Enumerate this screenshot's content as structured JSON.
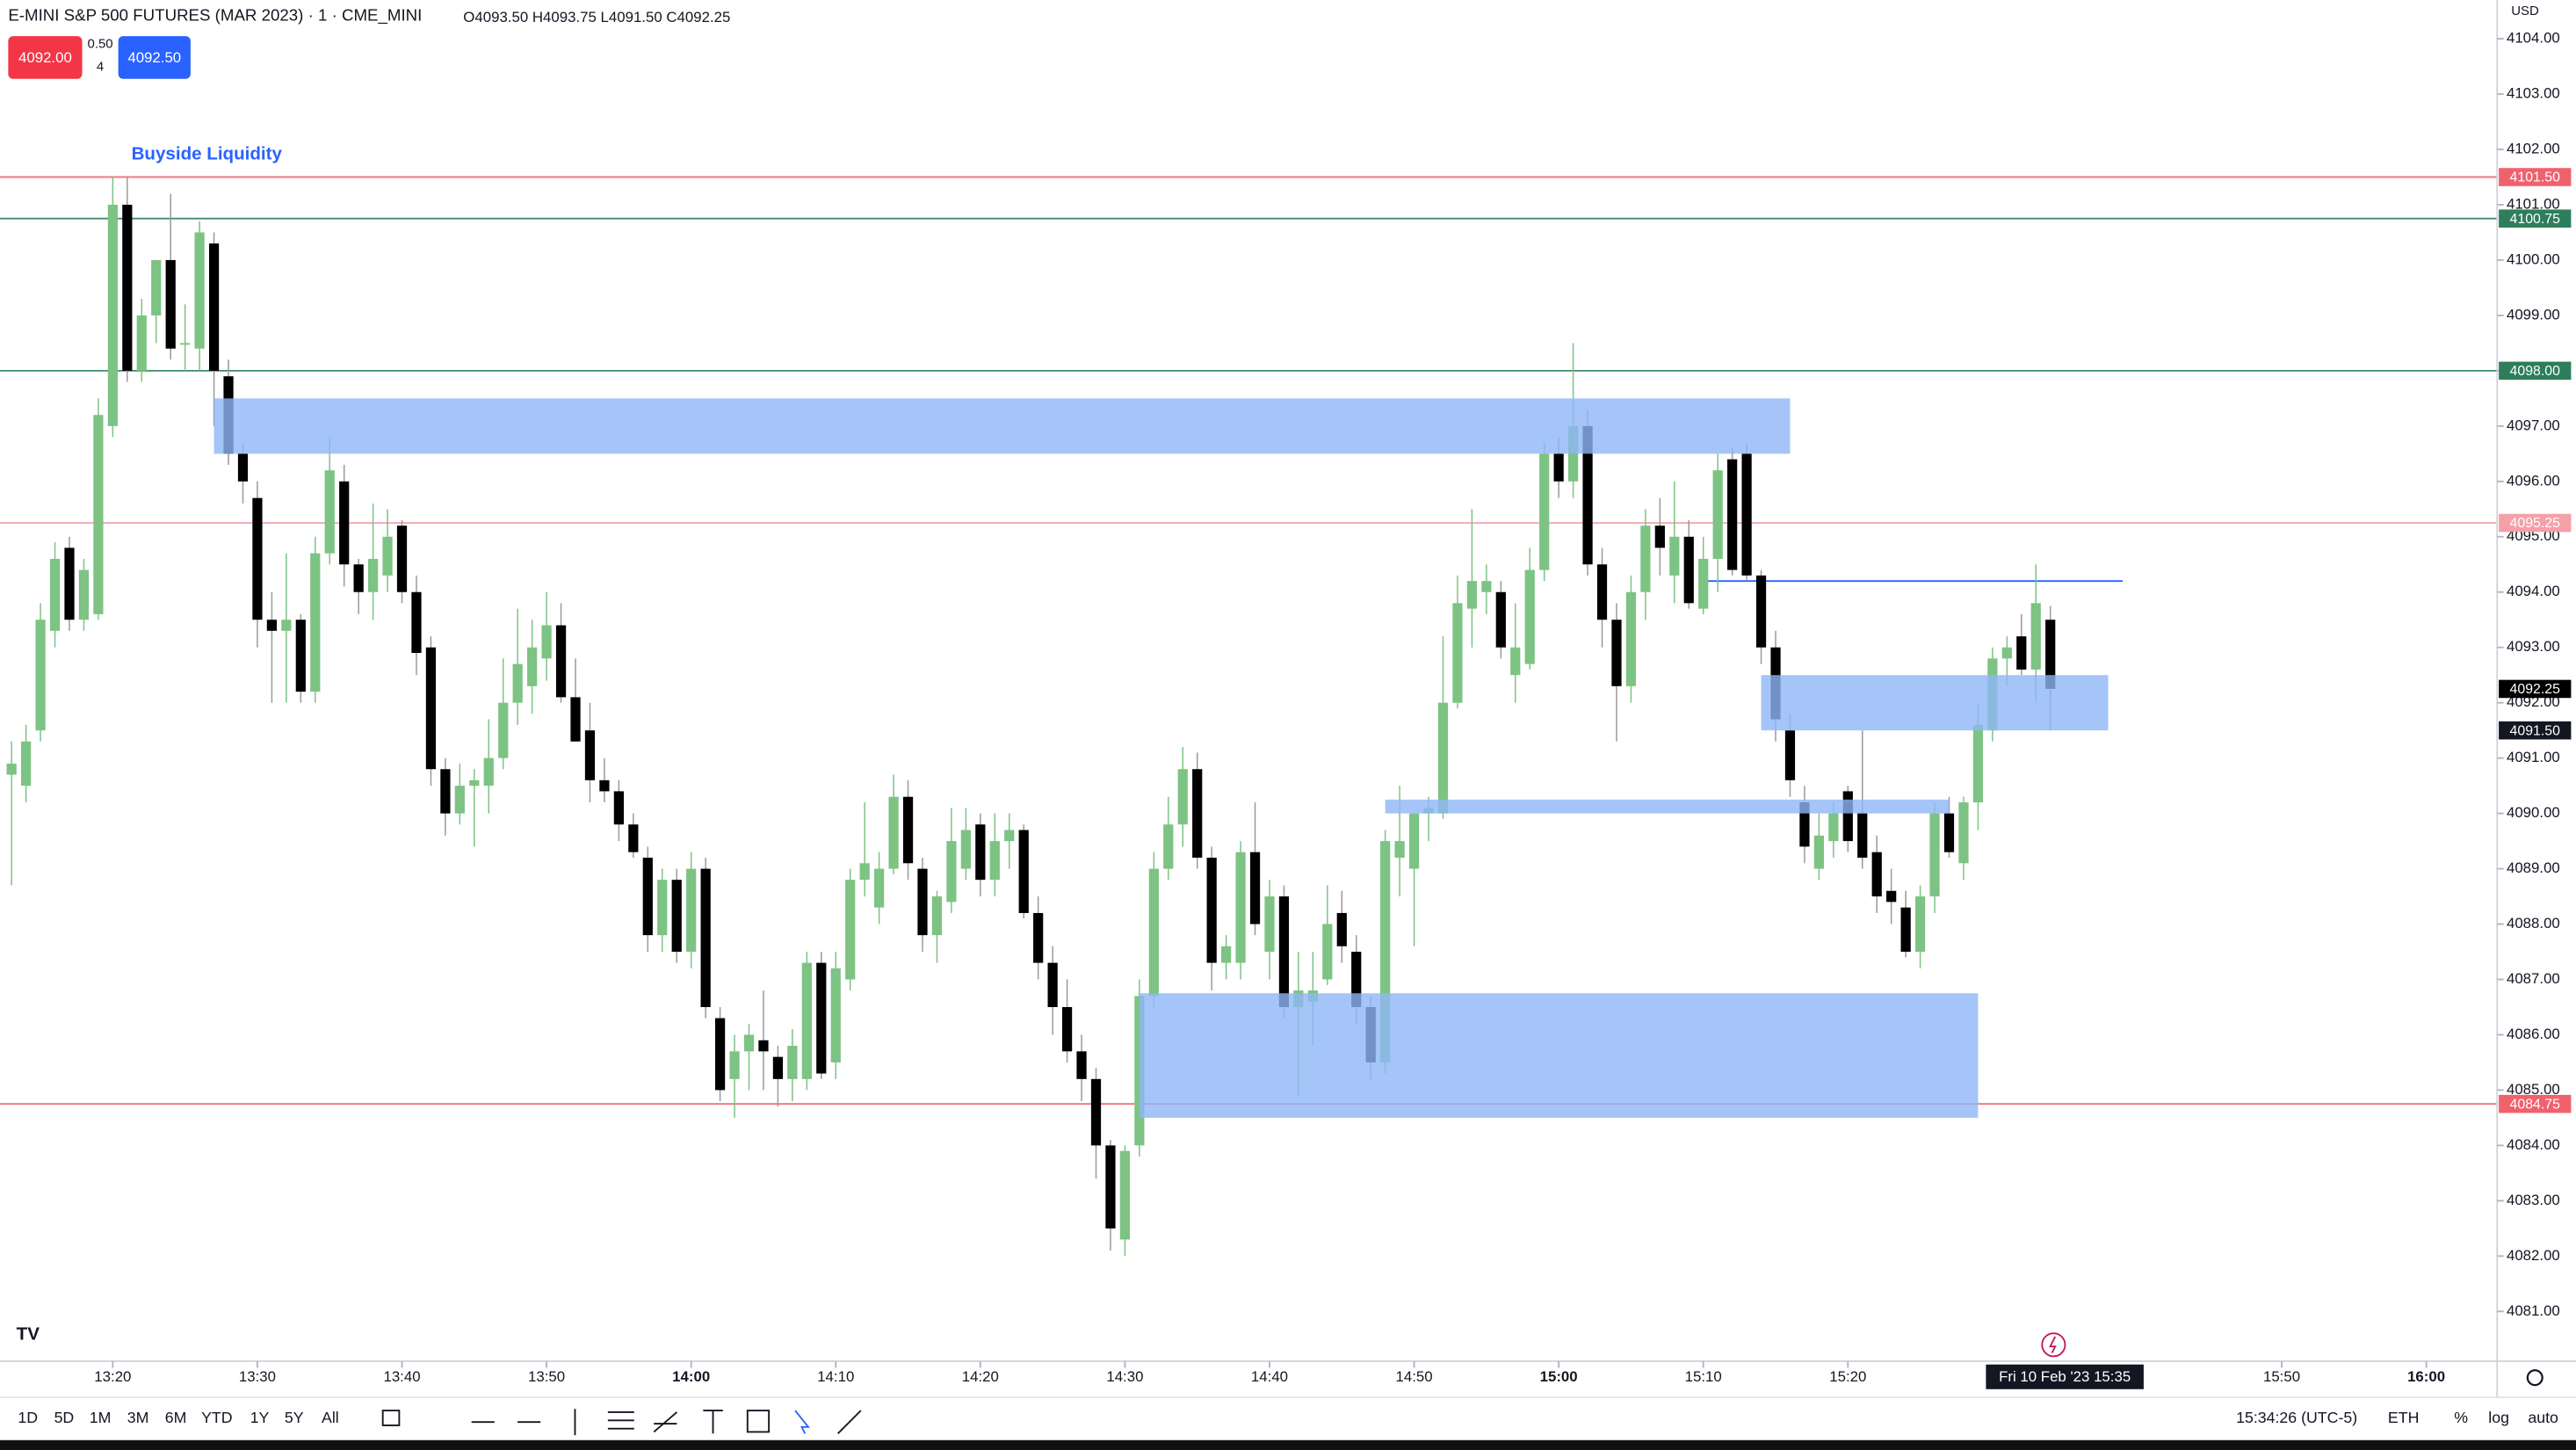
{
  "header": {
    "title": "E-MINI S&P 500 FUTURES (MAR 2023) · 1 · CME_MINI",
    "ohlc": "O4093.50 H4093.75 L4091.50 C4092.25",
    "bid": "4092.00",
    "spread": "0.50",
    "spread_count": "4",
    "ask": "4092.50",
    "currency": "USD"
  },
  "toolbar": {
    "timeframes": [
      "1D",
      "5D",
      "1M",
      "3M",
      "6M",
      "YTD",
      "1Y",
      "5Y",
      "All"
    ],
    "clock": "15:34:26 (UTC-5)",
    "session": "ETH",
    "scale_options": [
      "%",
      "log",
      "auto"
    ]
  },
  "chart_data": {
    "type": "candlestick",
    "annotation": "Buyside Liquidity",
    "up_color": "#7dc383",
    "down_color": "#000000",
    "grid": false,
    "xlim": [
      792.2,
      964.9
    ],
    "ylim": [
      4080.1,
      4104.7
    ],
    "xticks": [
      {
        "value": 800,
        "label": "13:20"
      },
      {
        "value": 810,
        "label": "13:30"
      },
      {
        "value": 820,
        "label": "13:40"
      },
      {
        "value": 830,
        "label": "13:50"
      },
      {
        "value": 840,
        "label": "14:00"
      },
      {
        "value": 850,
        "label": "14:10"
      },
      {
        "value": 860,
        "label": "14:20"
      },
      {
        "value": 870,
        "label": "14:30"
      },
      {
        "value": 880,
        "label": "14:40"
      },
      {
        "value": 890,
        "label": "14:50"
      },
      {
        "value": 900,
        "label": "15:00"
      },
      {
        "value": 910,
        "label": "15:10"
      },
      {
        "value": 920,
        "label": "15:20"
      },
      {
        "value": 950,
        "label": "15:50"
      },
      {
        "value": 960,
        "label": "16:00"
      }
    ],
    "yticks": [
      {
        "value": 4081,
        "label": "4081.00"
      },
      {
        "value": 4082,
        "label": "4082.00"
      },
      {
        "value": 4083,
        "label": "4083.00"
      },
      {
        "value": 4084,
        "label": "4084.00"
      },
      {
        "value": 4085,
        "label": "4085.00"
      },
      {
        "value": 4086,
        "label": "4086.00"
      },
      {
        "value": 4087,
        "label": "4087.00"
      },
      {
        "value": 4088,
        "label": "4088.00"
      },
      {
        "value": 4089,
        "label": "4089.00"
      },
      {
        "value": 4090,
        "label": "4090.00"
      },
      {
        "value": 4091,
        "label": "4091.00"
      },
      {
        "value": 4092,
        "label": "4092.00"
      },
      {
        "value": 4093,
        "label": "4093.00"
      },
      {
        "value": 4094,
        "label": "4094.00"
      },
      {
        "value": 4095,
        "label": "4095.00"
      },
      {
        "value": 4096,
        "label": "4096.00"
      },
      {
        "value": 4097,
        "label": "4097.00"
      },
      {
        "value": 4098,
        "label": "4098.00"
      },
      {
        "value": 4099,
        "label": "4099.00"
      },
      {
        "value": 4100,
        "label": "4100.00"
      },
      {
        "value": 4101,
        "label": "4101.00"
      },
      {
        "value": 4102,
        "label": "4102.00"
      },
      {
        "value": 4103,
        "label": "4103.00"
      },
      {
        "value": 4104,
        "label": "4104.00"
      }
    ],
    "x": [
      793,
      794,
      795,
      796,
      797,
      798,
      799,
      800,
      801,
      802,
      803,
      804,
      805,
      806,
      807,
      808,
      809,
      810,
      811,
      812,
      813,
      814,
      815,
      816,
      817,
      818,
      819,
      820,
      821,
      822,
      823,
      824,
      825,
      826,
      827,
      828,
      829,
      830,
      831,
      832,
      833,
      834,
      835,
      836,
      837,
      838,
      839,
      840,
      841,
      842,
      843,
      844,
      845,
      846,
      847,
      848,
      849,
      850,
      851,
      852,
      853,
      854,
      855,
      856,
      857,
      858,
      859,
      860,
      861,
      862,
      863,
      864,
      865,
      866,
      867,
      868,
      869,
      870,
      871,
      872,
      873,
      874,
      875,
      876,
      877,
      878,
      879,
      880,
      881,
      882,
      883,
      884,
      885,
      886,
      887,
      888,
      889,
      890,
      891,
      892,
      893,
      894,
      895,
      896,
      897,
      898,
      899,
      900,
      901,
      902,
      903,
      904,
      905,
      906,
      907,
      908,
      909,
      910,
      911,
      912,
      913,
      914,
      915,
      916,
      917,
      918,
      919,
      920,
      921,
      922,
      923,
      924,
      925,
      926,
      927,
      928,
      929,
      930,
      931,
      932,
      933,
      934
    ],
    "open": [
      4090.7,
      4090.5,
      4091.5,
      4093.3,
      4094.8,
      4093.5,
      4093.6,
      4097,
      4101,
      4098,
      4099,
      4100,
      4098.5,
      4098.4,
      4100.3,
      4097.9,
      4096.5,
      4095.7,
      4093.5,
      4093.3,
      4093.5,
      4092.2,
      4094.7,
      4096,
      4094.5,
      4094,
      4094.3,
      4095.2,
      4094,
      4093,
      4090.8,
      4090,
      4090.5,
      4090.5,
      4091,
      4092,
      4092.3,
      4092.8,
      4093.4,
      4092.1,
      4091.5,
      4090.6,
      4090.4,
      4089.8,
      4089.2,
      4087.8,
      4088.8,
      4087.5,
      4089,
      4086.3,
      4085.2,
      4085.7,
      4085.9,
      4085.6,
      4085.2,
      4085.2,
      4087.3,
      4085.5,
      4087,
      4088.8,
      4088.3,
      4089,
      4090.3,
      4089,
      4087.8,
      4088.4,
      4089,
      4089.8,
      4088.8,
      4089.5,
      4089.7,
      4088.2,
      4087.3,
      4086.5,
      4085.7,
      4085.2,
      4084,
      4082.3,
      4084,
      4086.7,
      4089,
      4089.8,
      4090.8,
      4089.2,
      4087.3,
      4087.3,
      4089.3,
      4087.5,
      4088.5,
      4086.5,
      4086.6,
      4087,
      4088.2,
      4087.5,
      4086.5,
      4085.5,
      4089.2,
      4089,
      4090,
      4090,
      4092,
      4093.7,
      4094,
      4094,
      4092.5,
      4092.7,
      4094.4,
      4096.5,
      4096,
      4097,
      4094.5,
      4093.5,
      4092.3,
      4094,
      4095.2,
      4094.3,
      4095,
      4093.7,
      4094.6,
      4096.4,
      4096.5,
      4094.3,
      4093,
      4091.5,
      4090.2,
      4089,
      4089.5,
      4090.4,
      4090,
      4089.3,
      4088.6,
      4088.3,
      4087.5,
      4088.5,
      4090,
      4089.1,
      4090.2,
      4091.5,
      4092.8,
      4093.2,
      4092.6,
      4093.5
    ],
    "high": [
      4091.3,
      4091.6,
      4093.8,
      4094.9,
      4095,
      4094.6,
      4097.5,
      4101.5,
      4101.5,
      4099.3,
      4100,
      4101.2,
      4099.2,
      4100.7,
      4100.5,
      4098.2,
      4096.7,
      4096,
      4094,
      4094.7,
      4093.6,
      4095,
      4096.8,
      4096.3,
      4094.6,
      4095.6,
      4095.5,
      4095.3,
      4094.3,
      4093.2,
      4091,
      4090.9,
      4090.8,
      4091.7,
      4092.8,
      4093.7,
      4093.5,
      4094,
      4093.8,
      4092.8,
      4092,
      4091,
      4090.6,
      4090,
      4089.4,
      4089,
      4089,
      4089.3,
      4089.2,
      4086.5,
      4086,
      4086.2,
      4086.8,
      4085.8,
      4086.1,
      4087.5,
      4087.5,
      4087.5,
      4089,
      4090.2,
      4089.3,
      4090.7,
      4090.6,
      4089.2,
      4088.6,
      4090.1,
      4090.1,
      4090,
      4090,
      4090,
      4089.8,
      4088.5,
      4087.6,
      4087,
      4086,
      4085.4,
      4084.1,
      4084,
      4087,
      4089.3,
      4090.3,
      4091.2,
      4091.1,
      4089.4,
      4087.8,
      4089.5,
      4090.2,
      4088.8,
      4088.7,
      4087.5,
      4087.5,
      4088.7,
      4088.6,
      4087.8,
      4086.7,
      4089.7,
      4090.5,
      4090,
      4090.3,
      4093.2,
      4094.3,
      4095.5,
      4094.5,
      4094.2,
      4093.8,
      4094.8,
      4096.7,
      4096.8,
      4098.5,
      4097.3,
      4094.8,
      4093.8,
      4094.3,
      4095.5,
      4095.7,
      4096,
      4095.3,
      4095,
      4096.5,
      4096.6,
      4096.7,
      4094.4,
      4093.3,
      4091.8,
      4090.5,
      4090,
      4090.2,
      4090.5,
      4091.5,
      4089.6,
      4089,
      4088.6,
      4088.7,
      4090.2,
      4090.3,
      4090.3,
      4092,
      4093,
      4093.2,
      4093.6,
      4094.5,
      4093.75
    ],
    "low": [
      4088.7,
      4090.2,
      4091.3,
      4093,
      4093.3,
      4093.3,
      4093.5,
      4096.8,
      4097.8,
      4097.8,
      4098.5,
      4098.2,
      4098,
      4098,
      4097,
      4096.3,
      4095.6,
      4093,
      4092,
      4092,
      4092,
      4092,
      4094.5,
      4094.1,
      4093.6,
      4093.5,
      4094,
      4093.8,
      4092.5,
      4090.5,
      4089.6,
      4089.8,
      4089.4,
      4090,
      4090.8,
      4091.6,
      4091.8,
      4092.4,
      4092,
      4091.3,
      4090.2,
      4090.2,
      4089.5,
      4089.2,
      4087.5,
      4087.5,
      4087.3,
      4087.2,
      4086.3,
      4084.8,
      4084.5,
      4085,
      4085,
      4084.7,
      4084.8,
      4085,
      4085.2,
      4085.2,
      4086.8,
      4088.5,
      4088,
      4088.9,
      4088.8,
      4087.5,
      4087.3,
      4088.2,
      4088.8,
      4088.5,
      4088.5,
      4089,
      4088.1,
      4087,
      4086,
      4085.5,
      4084.8,
      4083.4,
      4082.1,
      4082,
      4083.8,
      4086.5,
      4088.8,
      4089.4,
      4089,
      4086.8,
      4087,
      4087,
      4087.8,
      4087,
      4086.3,
      4084.9,
      4085.8,
      4086.9,
      4087.3,
      4086.2,
      4085.2,
      4085.3,
      4088.5,
      4087.6,
      4089.5,
      4089.9,
      4091.9,
      4093,
      4093.6,
      4092.8,
      4092,
      4092.6,
      4094.2,
      4095.7,
      4095.7,
      4094.3,
      4093,
      4091.3,
      4092,
      4093.5,
      4094.3,
      4093.8,
      4093.7,
      4093.6,
      4094,
      4094.3,
      4094.2,
      4092.7,
      4091.3,
      4090.3,
      4089.1,
      4088.8,
      4089.2,
      4089.3,
      4089,
      4088.2,
      4088,
      4087.4,
      4087.2,
      4088.2,
      4089.2,
      4088.8,
      4089.7,
      4091.3,
      4092.3,
      4092.5,
      4092,
      4091.5
    ],
    "close": [
      4090.9,
      4091.3,
      4093.5,
      4094.6,
      4093.5,
      4094.4,
      4097.2,
      4101,
      4098,
      4099,
      4100,
      4098.4,
      4098.5,
      4100.5,
      4098,
      4096.5,
      4096,
      4093.5,
      4093.3,
      4093.5,
      4092.2,
      4094.7,
      4096.2,
      4094.5,
      4094,
      4094.6,
      4095,
      4094,
      4092.9,
      4090.8,
      4090,
      4090.5,
      4090.6,
      4091,
      4092,
      4092.7,
      4093,
      4093.4,
      4092.1,
      4091.3,
      4090.6,
      4090.4,
      4089.8,
      4089.3,
      4087.8,
      4088.8,
      4087.5,
      4089,
      4086.5,
      4085,
      4085.7,
      4086,
      4085.7,
      4085.2,
      4085.8,
      4087.3,
      4085.3,
      4087.2,
      4088.8,
      4089.1,
      4089,
      4090.3,
      4089.1,
      4087.8,
      4088.5,
      4089.5,
      4089.7,
      4088.8,
      4089.5,
      4089.7,
      4088.2,
      4087.3,
      4086.5,
      4085.7,
      4085.2,
      4084,
      4082.5,
      4083.9,
      4086.7,
      4089,
      4089.8,
      4090.8,
      4089.2,
      4087.3,
      4087.6,
      4089.3,
      4088,
      4088.5,
      4086.5,
      4086.8,
      4086.8,
      4088,
      4087.6,
      4086.5,
      4085.5,
      4089.5,
      4089.5,
      4090,
      4090.1,
      4092,
      4093.8,
      4094.2,
      4094.2,
      4093,
      4093,
      4094.4,
      4096.5,
      4096,
      4097,
      4094.5,
      4093.5,
      4092.3,
      4094,
      4095.2,
      4094.8,
      4095,
      4093.8,
      4094.6,
      4096.2,
      4094.4,
      4094.3,
      4093,
      4091.7,
      4090.6,
      4089.4,
      4089.6,
      4090,
      4089.5,
      4089.2,
      4088.5,
      4088.4,
      4087.5,
      4088.5,
      4090,
      4089.3,
      4090.2,
      4091.6,
      4092.8,
      4093,
      4092.6,
      4093.8,
      4092.25
    ],
    "zones": [
      {
        "x": [
          807,
          916
        ],
        "y": [
          4096.5,
          4097.5
        ],
        "color": "#8fb6f6"
      },
      {
        "x": [
          914,
          938
        ],
        "y": [
          4091.5,
          4092.5
        ],
        "color": "#8fb6f6"
      },
      {
        "x": [
          888,
          927
        ],
        "y": [
          4090,
          4090.25
        ],
        "color": "#8fb6f6"
      },
      {
        "x": [
          871,
          929
        ],
        "y": [
          4084.5,
          4086.75
        ],
        "color": "#8fb6f6"
      }
    ],
    "rays": [
      {
        "x": [
          910,
          939
        ],
        "y": [
          4094.2,
          4094.2
        ],
        "color": "#2962ff"
      }
    ],
    "levels": [
      {
        "value": 4101.5,
        "label": "4101.50",
        "color": "#f0616d"
      },
      {
        "value": 4100.75,
        "label": "4100.75",
        "color": "#2e7d5b"
      },
      {
        "value": 4098,
        "label": "4098.00",
        "color": "#2e7d5b"
      },
      {
        "value": 4095.25,
        "label": "4095.25",
        "color": "#f5a0a8"
      },
      {
        "value": 4084.75,
        "label": "4084.75",
        "color": "#f0616d"
      }
    ],
    "price_markers": [
      {
        "value": 4092.25,
        "label": "4092.25",
        "color": "#000000"
      },
      {
        "value": 4091.5,
        "label": "4091.50",
        "color": "#131722"
      }
    ],
    "crosshair": {
      "value": 935,
      "label": "Fri 10 Feb '23  15:35"
    }
  }
}
